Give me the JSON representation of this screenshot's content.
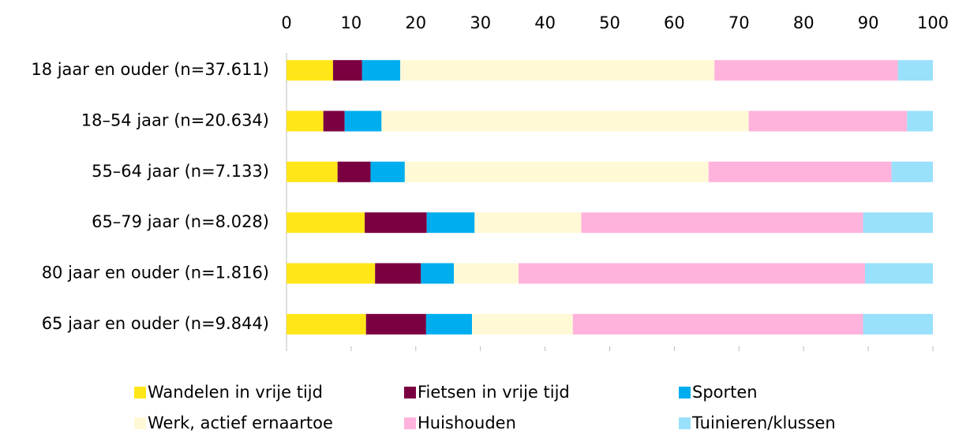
{
  "chart_data": {
    "type": "stacked-barh",
    "categories": [
      "18 jaar en ouder (n=37.611)",
      "18–54 jaar (n=20.634)",
      "55–64 jaar (n=7.133)",
      "65–79 jaar (n=8.028)",
      "80 jaar en ouder (n=1.816)",
      "65 jaar en ouder (n=9.844)"
    ],
    "series": [
      {
        "name": "Wandelen in vrije tijd",
        "color": "#ffe619",
        "values": [
          7.2,
          5.7,
          7.9,
          12.1,
          13.7,
          12.3
        ]
      },
      {
        "name": "Fietsen in vrije tijd",
        "color": "#7b0041",
        "values": [
          4.5,
          3.3,
          5.1,
          9.6,
          7.1,
          9.3
        ]
      },
      {
        "name": "Sporten",
        "color": "#00aeef",
        "values": [
          5.9,
          5.7,
          5.3,
          7.4,
          5.1,
          7.1
        ]
      },
      {
        "name": "Werk, actief ernaartoe",
        "color": "#fff9d6",
        "values": [
          48.6,
          56.8,
          47.0,
          16.5,
          10.0,
          15.6
        ]
      },
      {
        "name": "Huishouden",
        "color": "#ffb3dc",
        "values": [
          28.4,
          24.5,
          28.3,
          43.6,
          53.6,
          44.9
        ]
      },
      {
        "name": "Tuinieren/klussen",
        "color": "#99e0fb",
        "values": [
          5.4,
          4.0,
          6.4,
          10.8,
          10.5,
          10.8
        ]
      }
    ],
    "xlim": [
      0,
      100
    ],
    "xticks": [
      0,
      10,
      20,
      30,
      40,
      50,
      60,
      70,
      80,
      90,
      100
    ],
    "grid": false,
    "legend": "bottom"
  }
}
